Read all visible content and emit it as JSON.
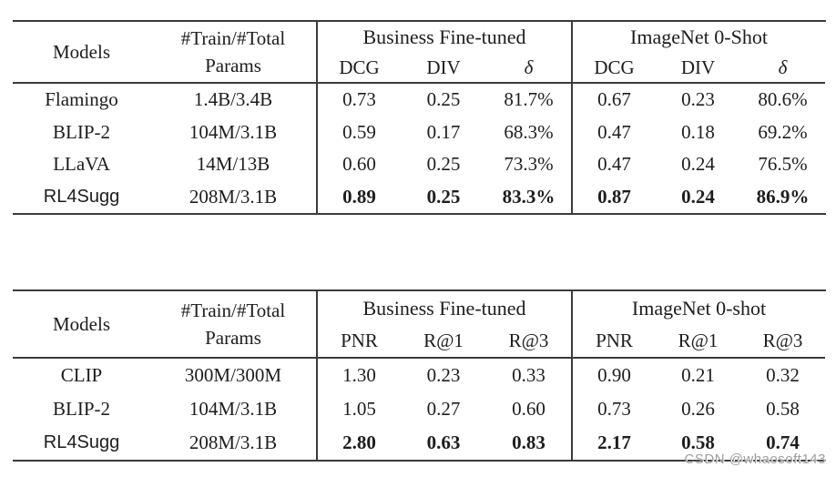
{
  "page": {
    "background": "#ffffff",
    "text_color": "#1d1d1f",
    "rule_color": "#3b3b3b"
  },
  "watermark": {
    "text": "CSDN @whaosoft143"
  },
  "table1": {
    "header": {
      "models": "Models",
      "params_line1": "#Train/#Total",
      "params_line2": "Params",
      "group1": "Business Fine-tuned",
      "group2": "ImageNet 0-Shot",
      "sub1": [
        "DCG",
        "DIV",
        "δ"
      ],
      "sub2": [
        "DCG",
        "DIV",
        "δ"
      ]
    },
    "rows": [
      {
        "model": "Flamingo",
        "params": "1.4B/3.4B",
        "v1": "0.73",
        "v2": "0.25",
        "v3": "81.7%",
        "v4": "0.67",
        "v5": "0.23",
        "v6": "80.6%"
      },
      {
        "model": "BLIP-2",
        "params": "104M/3.1B",
        "v1": "0.59",
        "v2": "0.17",
        "v3": "68.3%",
        "v4": "0.47",
        "v5": "0.18",
        "v6": "69.2%"
      },
      {
        "model": "LLaVA",
        "params": "14M/13B",
        "v1": "0.60",
        "v2": "0.25",
        "v3": "73.3%",
        "v4": "0.47",
        "v5": "0.24",
        "v6": "76.5%"
      },
      {
        "model": "RL4Sugg",
        "params": "208M/3.1B",
        "v1": "0.89",
        "v2": "0.25",
        "v3": "83.3%",
        "v4": "0.87",
        "v5": "0.24",
        "v6": "86.9%"
      }
    ]
  },
  "table2": {
    "header": {
      "models": "Models",
      "params_line1": "#Train/#Total",
      "params_line2": "Params",
      "group1": "Business Fine-tuned",
      "group2": "ImageNet 0-shot",
      "sub1": [
        "PNR",
        "R@1",
        "R@3"
      ],
      "sub2": [
        "PNR",
        "R@1",
        "R@3"
      ]
    },
    "rows": [
      {
        "model": "CLIP",
        "params": "300M/300M",
        "v1": "1.30",
        "v2": "0.23",
        "v3": "0.33",
        "v4": "0.90",
        "v5": "0.21",
        "v6": "0.32"
      },
      {
        "model": "BLIP-2",
        "params": "104M/3.1B",
        "v1": "1.05",
        "v2": "0.27",
        "v3": "0.60",
        "v4": "0.73",
        "v5": "0.26",
        "v6": "0.58"
      },
      {
        "model": "RL4Sugg",
        "params": "208M/3.1B",
        "v1": "2.80",
        "v2": "0.63",
        "v3": "0.83",
        "v4": "2.17",
        "v5": "0.58",
        "v6": "0.74"
      }
    ]
  }
}
